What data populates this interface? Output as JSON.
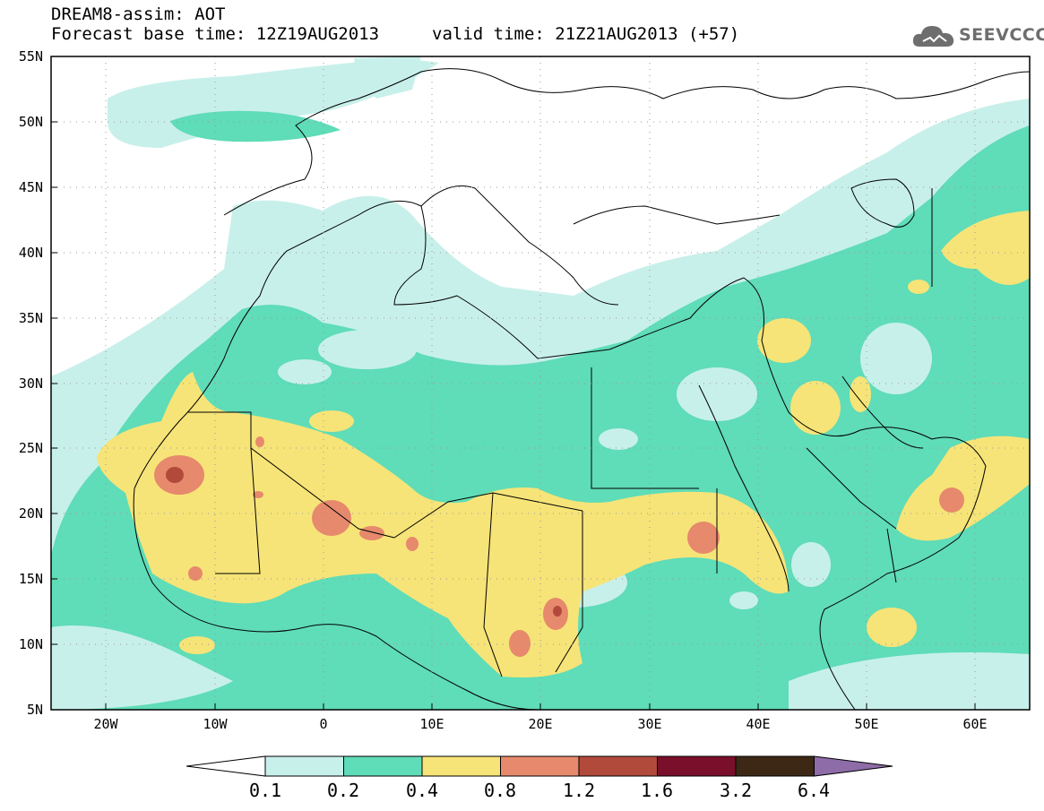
{
  "header": {
    "title_line1": "DREAM8-assim: AOT",
    "title_line2": "Forecast base time: 12Z19AUG2013",
    "valid_time": "valid time: 21Z21AUG2013 (+57)",
    "logo_text": "SEEVCCC"
  },
  "axes": {
    "y_labels": [
      "55N",
      "50N",
      "45N",
      "40N",
      "35N",
      "30N",
      "25N",
      "20N",
      "15N",
      "10N",
      "5N"
    ],
    "x_labels": [
      "20W",
      "10W",
      "0",
      "10E",
      "20E",
      "30E",
      "40E",
      "50E",
      "60E"
    ]
  },
  "colorbar": {
    "labels": [
      "0.1",
      "0.2",
      "0.4",
      "0.8",
      "1.2",
      "1.6",
      "3.2",
      "6.4"
    ],
    "colors": [
      "#c8f0ea",
      "#5fdcb8",
      "#f6e478",
      "#e6896c",
      "#b24a3c",
      "#7a0f2c",
      "#3c2814",
      "#8e6ca8"
    ]
  },
  "palette": {
    "very_low": "#c8f0ea",
    "low": "#5fdcb8",
    "moderate": "#f6e478",
    "high": "#e6896c",
    "very_high": "#b24a3c"
  }
}
